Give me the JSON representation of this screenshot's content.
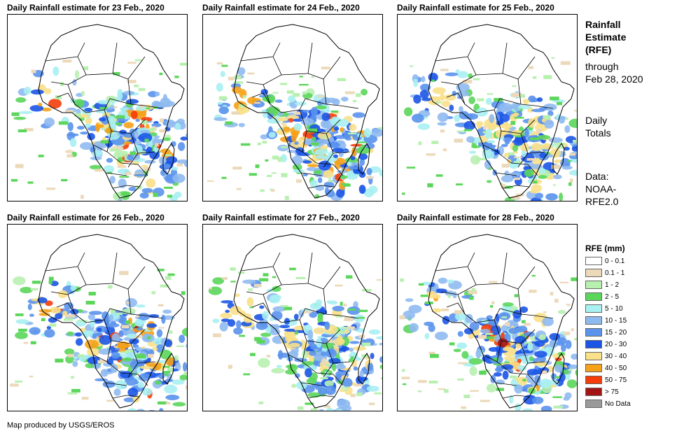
{
  "panels": [
    {
      "title": "Daily Rainfall estimate for 23 Feb., 2020",
      "date": "23 Feb."
    },
    {
      "title": "Daily Rainfall estimate for 24 Feb., 2020",
      "date": "24 Feb."
    },
    {
      "title": "Daily Rainfall estimate for 25 Feb., 2020",
      "date": "25 Feb."
    },
    {
      "title": "Daily Rainfall estimate for 26 Feb., 2020",
      "date": "26 Feb."
    },
    {
      "title": "Daily Rainfall estimate for 27 Feb., 2020",
      "date": "27 Feb."
    },
    {
      "title": "Daily Rainfall estimate for 28 Feb., 2020",
      "date": "28 Feb."
    }
  ],
  "sidebar": {
    "heading_line1": "Rainfall",
    "heading_line2": "Estimate",
    "heading_line3": "(RFE)",
    "through_line1": "through",
    "through_line2": "Feb 28, 2020",
    "totals_line1": "Daily",
    "totals_line2": "Totals",
    "data_line1": "Data:",
    "data_line2": "NOAA-",
    "data_line3": "RFE2.0"
  },
  "legend": {
    "title": "RFE (mm)",
    "items": [
      {
        "label": "0 - 0.1",
        "color": "#ffffff"
      },
      {
        "label": "0.1 - 1",
        "color": "#ecd9b9"
      },
      {
        "label": "1 - 2",
        "color": "#b8f0b0"
      },
      {
        "label": "2 - 5",
        "color": "#5bd65b"
      },
      {
        "label": "5 - 10",
        "color": "#a9f0f2"
      },
      {
        "label": "10 - 15",
        "color": "#8fbaf0"
      },
      {
        "label": "15 - 20",
        "color": "#5a92ec"
      },
      {
        "label": "20 - 30",
        "color": "#1c55e6"
      },
      {
        "label": "30 - 40",
        "color": "#fae089"
      },
      {
        "label": "40 - 50",
        "color": "#f5a21a"
      },
      {
        "label": "50 - 75",
        "color": "#f43d0a"
      },
      {
        "label": "> 75",
        "color": "#a31515"
      },
      {
        "label": "No Data",
        "color": "#9a9a9a"
      }
    ]
  },
  "footer": "Map produced by USGS/EROS"
}
